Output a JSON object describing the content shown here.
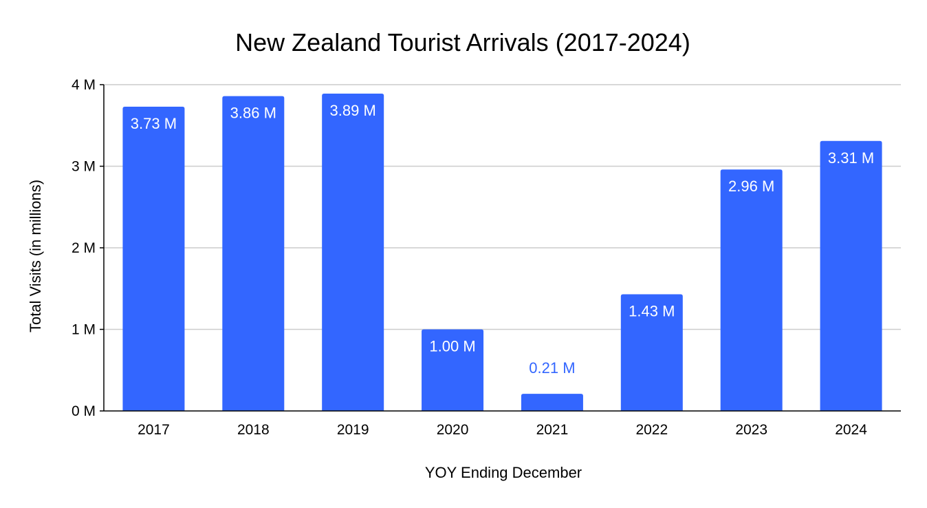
{
  "chart_data": {
    "type": "bar",
    "title": "New Zealand Tourist Arrivals (2017-2024)",
    "xlabel": "YOY Ending December",
    "ylabel": "Total Visits (in millions)",
    "categories": [
      "2017",
      "2018",
      "2019",
      "2020",
      "2021",
      "2022",
      "2023",
      "2024"
    ],
    "values": [
      3.73,
      3.86,
      3.89,
      1.0,
      0.21,
      1.43,
      2.96,
      3.31
    ],
    "data_labels": [
      "3.73 M",
      "3.86 M",
      "3.89 M",
      "1.00 M",
      "0.21 M",
      "1.43 M",
      "2.96 M",
      "3.31 M"
    ],
    "ylim": [
      0,
      4
    ],
    "yticks": [
      0,
      1,
      2,
      3,
      4
    ],
    "ytick_labels": [
      "0 M",
      "1 M",
      "2 M",
      "3 M",
      "4 M"
    ],
    "grid": true,
    "legend": "none",
    "colors": {
      "bar": "#3366ff",
      "gridline": "#cccccc",
      "axis": "#000000",
      "label_inside": "#ffffff",
      "label_outside": "#3366ff"
    }
  }
}
